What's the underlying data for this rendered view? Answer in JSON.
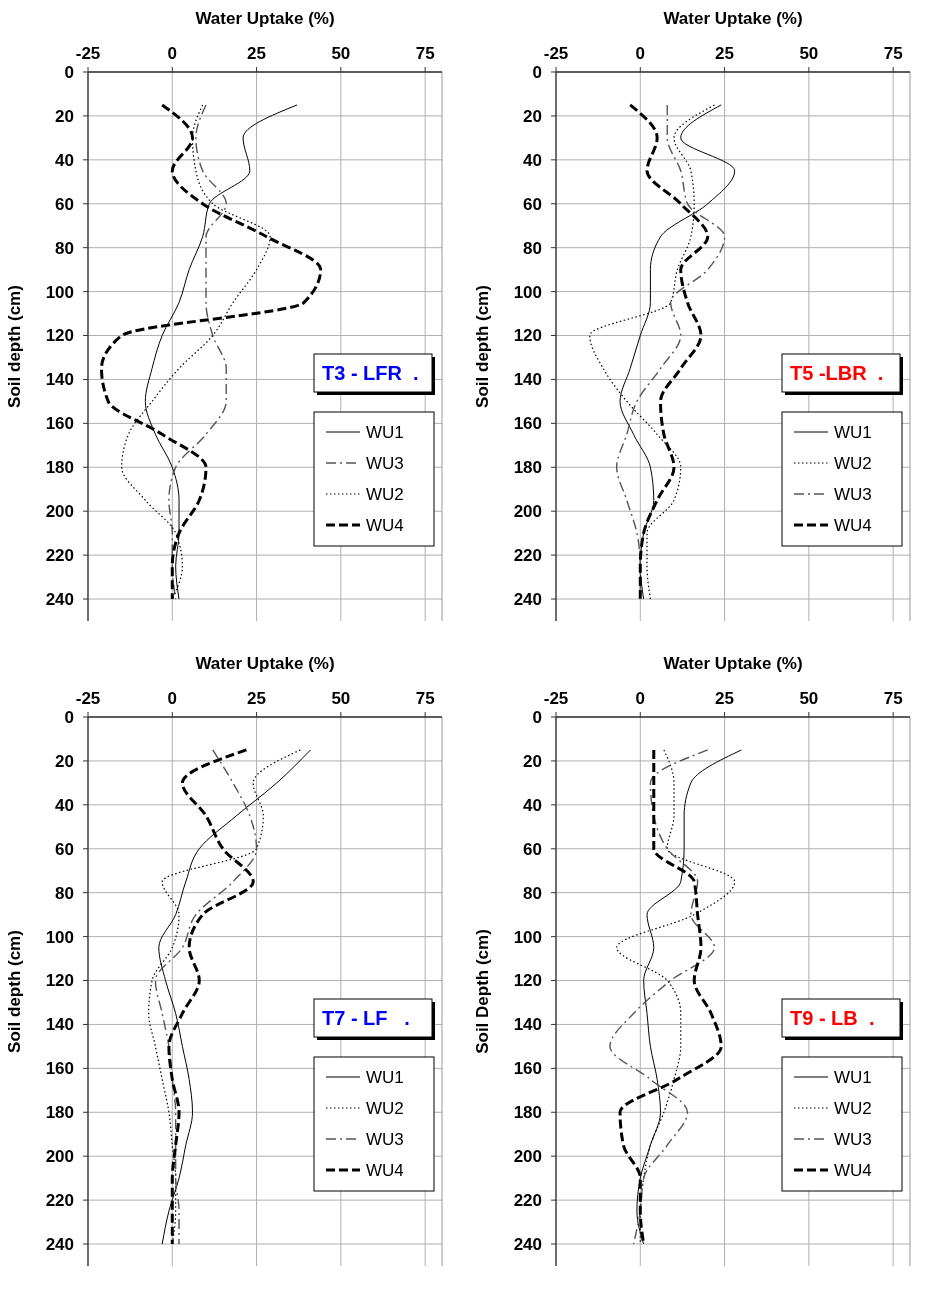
{
  "chart_data": [
    {
      "type": "line",
      "xlabel": "Water Uptake (%)",
      "ylabel": "Soil depth (cm)",
      "xlim": [
        -25,
        80
      ],
      "xticks": [
        -25,
        0,
        25,
        50,
        75
      ],
      "ylim": [
        250,
        0
      ],
      "yticks": [
        0,
        20,
        40,
        60,
        80,
        100,
        120,
        140,
        160,
        180,
        200,
        220,
        240
      ],
      "grid": true,
      "legend": "bottom right",
      "annotations": [
        "T3 - LFR  ."
      ],
      "series": [
        {
          "name": "WU1",
          "color": "#000000",
          "line_style": "solid",
          "x": [
            37,
            21,
            23,
            11,
            9,
            5,
            2,
            -3,
            -6,
            -8,
            -5,
            0,
            2,
            2,
            1,
            2
          ],
          "values": [
            15,
            30,
            45,
            60,
            75,
            90,
            105,
            120,
            135,
            150,
            165,
            180,
            195,
            210,
            225,
            240
          ]
        },
        {
          "name": "WU3",
          "color": "#555555",
          "line_style": "dashed",
          "x": [
            10,
            7,
            9,
            16,
            10,
            10,
            10,
            12,
            16,
            16,
            10,
            1,
            -1,
            0,
            0,
            1
          ],
          "values": [
            15,
            30,
            45,
            60,
            75,
            90,
            105,
            120,
            135,
            150,
            165,
            180,
            195,
            210,
            225,
            240
          ]
        },
        {
          "name": "WU2",
          "color": "#000000",
          "line_style": "dotted",
          "x": [
            9,
            6,
            7,
            12,
            29,
            25,
            18,
            12,
            2,
            -6,
            -13,
            -15,
            -8,
            1,
            3,
            0
          ],
          "values": [
            15,
            30,
            45,
            60,
            75,
            90,
            105,
            120,
            135,
            150,
            165,
            180,
            195,
            210,
            225,
            240
          ]
        },
        {
          "name": "WU4",
          "color": "#000000",
          "line_style": "dashed",
          "x": [
            -3,
            6,
            0,
            9,
            28,
            44,
            39,
            -15,
            -21,
            -19,
            -3,
            10,
            8,
            2,
            0,
            0
          ],
          "values": [
            15,
            30,
            45,
            60,
            75,
            90,
            105,
            120,
            135,
            150,
            165,
            180,
            195,
            210,
            225,
            240
          ]
        }
      ]
    },
    {
      "type": "line",
      "xlabel": "Water Uptake (%)",
      "ylabel": "Soil depth (cm)",
      "xlim": [
        -25,
        80
      ],
      "xticks": [
        -25,
        0,
        25,
        50,
        75
      ],
      "ylim": [
        250,
        0
      ],
      "yticks": [
        0,
        20,
        40,
        60,
        80,
        100,
        120,
        140,
        160,
        180,
        200,
        220,
        240
      ],
      "grid": true,
      "legend": "bottom right",
      "annotations": [
        "T5 -LBR  ."
      ],
      "series": [
        {
          "name": "WU1",
          "color": "#000000",
          "line_style": "solid",
          "x": [
            24,
            12,
            28,
            20,
            6,
            3,
            3,
            0,
            -3,
            -6,
            -2,
            3,
            4,
            1,
            0,
            1
          ],
          "values": [
            15,
            30,
            45,
            60,
            75,
            90,
            105,
            120,
            135,
            150,
            165,
            180,
            195,
            210,
            225,
            240
          ]
        },
        {
          "name": "WU2",
          "color": "#000000",
          "line_style": "dotted",
          "x": [
            22,
            10,
            15,
            16,
            15,
            11,
            9,
            -15,
            -11,
            -4,
            5,
            12,
            10,
            2,
            2,
            3
          ],
          "values": [
            15,
            30,
            45,
            60,
            75,
            90,
            105,
            120,
            135,
            150,
            165,
            180,
            195,
            210,
            225,
            240
          ]
        },
        {
          "name": "WU3",
          "color": "#555555",
          "line_style": "dashed",
          "x": [
            8,
            8,
            12,
            14,
            25,
            20,
            9,
            12,
            6,
            -1,
            -4,
            -7,
            -4,
            -1,
            0,
            0
          ],
          "values": [
            15,
            30,
            45,
            60,
            75,
            90,
            105,
            120,
            135,
            150,
            165,
            180,
            195,
            210,
            225,
            240
          ]
        },
        {
          "name": "WU4",
          "color": "#000000",
          "line_style": "dashed",
          "x": [
            -3,
            5,
            2,
            12,
            20,
            12,
            14,
            18,
            12,
            6,
            7,
            10,
            5,
            1,
            0,
            0
          ],
          "values": [
            15,
            30,
            45,
            60,
            75,
            90,
            105,
            120,
            135,
            150,
            165,
            180,
            195,
            210,
            225,
            240
          ]
        }
      ]
    },
    {
      "type": "line",
      "xlabel": "Water Uptake (%)",
      "ylabel": "Soil depth (cm)",
      "xlim": [
        -25,
        80
      ],
      "xticks": [
        -25,
        0,
        25,
        50,
        75
      ],
      "ylim": [
        250,
        0
      ],
      "yticks": [
        0,
        20,
        40,
        60,
        80,
        100,
        120,
        140,
        160,
        180,
        200,
        220,
        240
      ],
      "grid": true,
      "legend": "bottom right",
      "annotations": [
        "T7 - LF   ."
      ],
      "series": [
        {
          "name": "WU1",
          "color": "#000000",
          "line_style": "solid",
          "x": [
            41,
            31,
            19,
            8,
            4,
            1,
            -4,
            -2,
            1,
            3,
            5,
            6,
            4,
            2,
            -1,
            -3
          ],
          "values": [
            15,
            30,
            45,
            60,
            75,
            90,
            105,
            120,
            135,
            150,
            165,
            180,
            195,
            210,
            225,
            240
          ]
        },
        {
          "name": "WU2",
          "color": "#000000",
          "line_style": "dotted",
          "x": [
            38,
            24,
            27,
            25,
            -3,
            2,
            0,
            -6,
            -7,
            -5,
            -3,
            -1,
            0,
            1,
            1,
            0
          ],
          "values": [
            15,
            30,
            45,
            60,
            75,
            90,
            105,
            120,
            135,
            150,
            165,
            180,
            195,
            210,
            225,
            240
          ]
        },
        {
          "name": "WU3",
          "color": "#555555",
          "line_style": "dashed",
          "x": [
            12,
            18,
            23,
            25,
            18,
            7,
            3,
            -5,
            -3,
            -1,
            0,
            1,
            1,
            1,
            2,
            2
          ],
          "values": [
            15,
            30,
            45,
            60,
            75,
            90,
            105,
            120,
            135,
            150,
            165,
            180,
            195,
            210,
            225,
            240
          ]
        },
        {
          "name": "WU4",
          "color": "#000000",
          "line_style": "dashed",
          "x": [
            22,
            3,
            10,
            15,
            24,
            9,
            5,
            8,
            3,
            -1,
            0,
            2,
            1,
            0,
            0,
            0
          ],
          "values": [
            15,
            30,
            45,
            60,
            75,
            90,
            105,
            120,
            135,
            150,
            165,
            180,
            195,
            210,
            225,
            240
          ]
        }
      ]
    },
    {
      "type": "line",
      "xlabel": "Water Uptake (%)",
      "ylabel": "Soil Depth (cm)",
      "xlim": [
        -25,
        80
      ],
      "xticks": [
        -25,
        0,
        25,
        50,
        75
      ],
      "ylim": [
        250,
        0
      ],
      "yticks": [
        0,
        20,
        40,
        60,
        80,
        100,
        120,
        140,
        160,
        180,
        200,
        220,
        240
      ],
      "grid": true,
      "legend": "bottom right",
      "annotations": [
        "T9 - LB  ."
      ],
      "series": [
        {
          "name": "WU1",
          "color": "#000000",
          "line_style": "solid",
          "x": [
            30,
            15,
            13,
            13,
            12,
            2,
            4,
            1,
            2,
            3,
            5,
            6,
            3,
            0,
            -1,
            1
          ],
          "values": [
            15,
            30,
            45,
            60,
            75,
            90,
            105,
            120,
            135,
            150,
            165,
            180,
            195,
            210,
            225,
            240
          ]
        },
        {
          "name": "WU2",
          "color": "#000000",
          "line_style": "dotted",
          "x": [
            7,
            10,
            10,
            8,
            28,
            16,
            -7,
            8,
            12,
            12,
            10,
            7,
            3,
            1,
            0,
            0
          ],
          "values": [
            15,
            30,
            45,
            60,
            75,
            90,
            105,
            120,
            135,
            150,
            165,
            180,
            195,
            210,
            225,
            240
          ]
        },
        {
          "name": "WU3",
          "color": "#555555",
          "line_style": "dashed",
          "x": [
            20,
            3,
            4,
            8,
            17,
            15,
            22,
            9,
            -2,
            -9,
            3,
            14,
            8,
            1,
            0,
            -2
          ],
          "values": [
            15,
            30,
            45,
            60,
            75,
            90,
            105,
            120,
            135,
            150,
            165,
            180,
            195,
            210,
            225,
            240
          ]
        },
        {
          "name": "WU4",
          "color": "#000000",
          "line_style": "dashed",
          "x": [
            4,
            4,
            4,
            4,
            16,
            17,
            18,
            16,
            21,
            24,
            11,
            -6,
            -5,
            0,
            0,
            1
          ],
          "values": [
            15,
            30,
            45,
            60,
            75,
            90,
            105,
            120,
            135,
            150,
            165,
            180,
            195,
            210,
            225,
            240
          ]
        }
      ]
    }
  ]
}
